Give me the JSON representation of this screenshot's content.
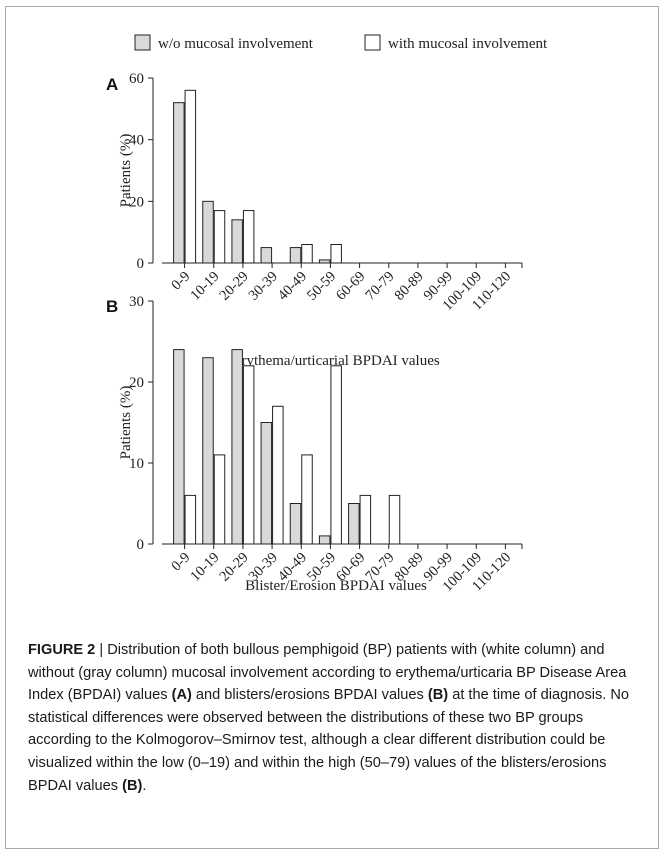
{
  "legend": {
    "items": [
      {
        "label": "w/o mucosal involvement",
        "color": "#d9d9d9"
      },
      {
        "label": "with mucosal involvement",
        "color": "#ffffff"
      }
    ]
  },
  "chart_data": [
    {
      "type": "bar",
      "panel_label": "A",
      "title": "",
      "xlabel": "Erythema/urticarial BPDAI values",
      "ylabel": "Patients (%)",
      "ylim": [
        0,
        60
      ],
      "yticks": [
        "0",
        "20",
        "40",
        "60"
      ],
      "categories": [
        "0-9",
        "10-19",
        "20-29",
        "30-39",
        "40-49",
        "50-59",
        "60-69",
        "70-79",
        "80-89",
        "90-99",
        "100-109",
        "110-120"
      ],
      "series": [
        {
          "name": "w/o mucosal involvement",
          "color": "#d9d9d9",
          "values": [
            52,
            20,
            14,
            5,
            5,
            1,
            0,
            0,
            0,
            0,
            0,
            0
          ]
        },
        {
          "name": "with mucosal involvement",
          "color": "#ffffff",
          "values": [
            56,
            17,
            17,
            0,
            6,
            6,
            0,
            0,
            0,
            0,
            0,
            0
          ]
        }
      ]
    },
    {
      "type": "bar",
      "panel_label": "B",
      "title": "",
      "xlabel": "Blister/Erosion BPDAI values",
      "ylabel": "Patients (%)",
      "ylim": [
        0,
        30
      ],
      "yticks": [
        "0",
        "10",
        "20",
        "30"
      ],
      "categories": [
        "0-9",
        "10-19",
        "20-29",
        "30-39",
        "40-49",
        "50-59",
        "60-69",
        "70-79",
        "80-89",
        "90-99",
        "100-109",
        "110-120"
      ],
      "series": [
        {
          "name": "w/o mucosal involvement",
          "color": "#d9d9d9",
          "values": [
            24,
            23,
            24,
            15,
            5,
            1,
            5,
            0,
            0,
            0,
            0,
            0
          ]
        },
        {
          "name": "with mucosal involvement",
          "color": "#ffffff",
          "values": [
            6,
            11,
            22,
            17,
            11,
            22,
            6,
            6,
            0,
            0,
            0,
            0
          ]
        }
      ]
    }
  ],
  "caption": {
    "figure_label": "FIGURE 2",
    "separator": " | ",
    "text_1": "Distribution of both bullous pemphigoid (BP) patients with (white column) and without (gray column) mucosal involvement according to erythema/urticaria BP Disease Area Index (BPDAI) values ",
    "ref_a": "(A)",
    "text_2": " and blisters/erosions BPDAI values ",
    "ref_b1": "(B)",
    "text_3": " at the time of diagnosis. No statistical differences were observed between the distributions of these two BP groups according to the Kolmogorov–Smirnov test, although a clear different distribution could be visualized within the low (0–19) and within the high (50–79) values of the blisters/erosions BPDAI values ",
    "ref_b2": "(B)",
    "text_4": "."
  }
}
